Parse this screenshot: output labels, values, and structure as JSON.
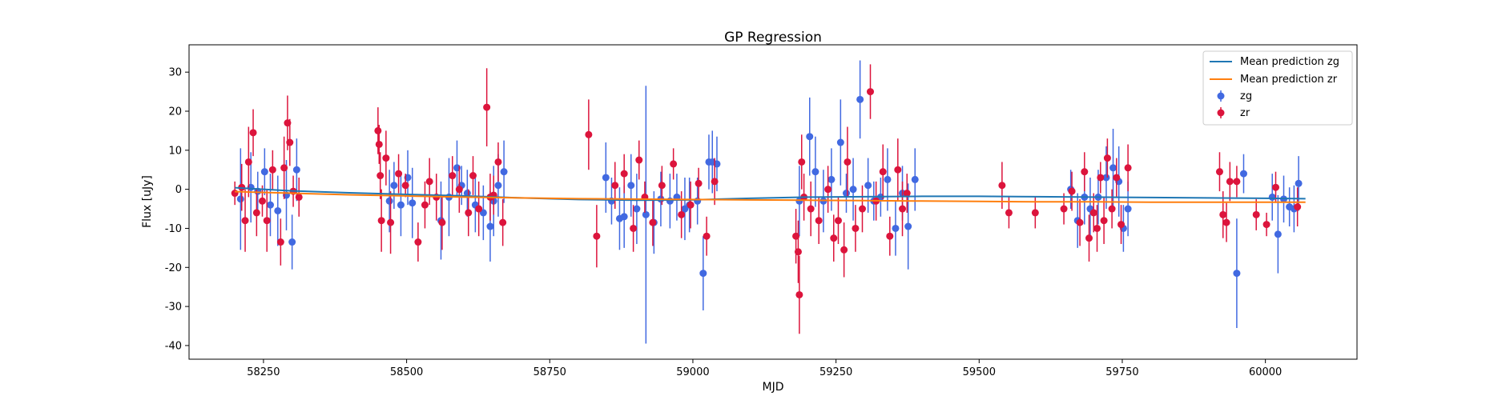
{
  "chart_data": {
    "type": "scatter",
    "title": "GP Regression",
    "xlabel": "MJD",
    "ylabel": "Flux [uJy]",
    "xlim": [
      58120,
      60160
    ],
    "ylim": [
      -43.5,
      37
    ],
    "xticks": [
      58250,
      58500,
      58750,
      59000,
      59250,
      59500,
      59750,
      60000
    ],
    "yticks": [
      -40,
      -30,
      -20,
      -10,
      0,
      10,
      20,
      30
    ],
    "grid": false,
    "legend_position": "top-right",
    "legend": [
      "Mean prediction zg",
      "Mean prediction zr",
      "zg",
      "zr"
    ],
    "colors": {
      "mean_zg": "#1f77b4",
      "mean_zr": "#ff7f0e",
      "zg": "#4169e1",
      "zr": "#dc143c"
    },
    "series": [
      {
        "name": "Mean prediction zg",
        "kind": "line",
        "x": [
          58200,
          58300,
          58400,
          58500,
          58600,
          58700,
          58800,
          58900,
          59000,
          59100,
          59200,
          59300,
          59400,
          59500,
          59600,
          59700,
          59800,
          59900,
          60000,
          60070
        ],
        "y": [
          0.4,
          -0.4,
          -0.9,
          -1.3,
          -1.7,
          -2.2,
          -2.6,
          -2.8,
          -2.7,
          -2.3,
          -2.0,
          -1.9,
          -1.8,
          -1.8,
          -1.9,
          -2.0,
          -2.1,
          -2.2,
          -2.3,
          -2.4
        ]
      },
      {
        "name": "Mean prediction zr",
        "kind": "line",
        "x": [
          58200,
          58300,
          58400,
          58500,
          58600,
          58700,
          58800,
          58900,
          59000,
          59100,
          59200,
          59300,
          59400,
          59500,
          59600,
          59700,
          59800,
          59900,
          60000,
          60070
        ],
        "y": [
          -0.6,
          -1.0,
          -1.4,
          -1.7,
          -2.0,
          -2.2,
          -2.4,
          -2.5,
          -2.6,
          -2.7,
          -2.8,
          -2.9,
          -3.0,
          -3.1,
          -3.2,
          -3.2,
          -3.3,
          -3.3,
          -3.3,
          -3.3
        ]
      },
      {
        "name": "zg",
        "kind": "errorbar",
        "x": [
          58210,
          58228,
          58240,
          58252,
          58262,
          58275,
          58290,
          58300,
          58308,
          58470,
          58478,
          58490,
          58502,
          58510,
          58560,
          58574,
          58588,
          58596,
          58606,
          58620,
          58634,
          58646,
          58652,
          58660,
          58670,
          58848,
          58858,
          58872,
          58880,
          58892,
          58902,
          58918,
          58932,
          58944,
          58960,
          58972,
          58986,
          58994,
          59008,
          59018,
          59028,
          59034,
          59042,
          59186,
          59204,
          59214,
          59228,
          59242,
          59258,
          59268,
          59280,
          59292,
          59306,
          59316,
          59328,
          59340,
          59354,
          59366,
          59376,
          59388,
          59660,
          59672,
          59684,
          59694,
          59708,
          59722,
          59734,
          59744,
          59752,
          59760,
          59950,
          59962,
          60012,
          60022,
          60032,
          60042,
          60050,
          60058
        ],
        "y": [
          -2.5,
          0.5,
          -0.5,
          4.5,
          -4.0,
          -5.5,
          -1.5,
          -13.5,
          5.0,
          -3.0,
          1.0,
          -4.0,
          3.0,
          -3.5,
          -8.0,
          -2.0,
          5.5,
          1.0,
          -1.0,
          -4.0,
          -6.0,
          -9.5,
          -3.0,
          1.0,
          4.5,
          3.0,
          -3.0,
          -7.5,
          -7.0,
          1.0,
          -5.0,
          -6.5,
          -8.5,
          -2.5,
          -3.0,
          -2.0,
          -5.0,
          -4.0,
          -3.0,
          -21.5,
          7.0,
          7.0,
          6.5,
          -3.0,
          13.5,
          4.5,
          -3.0,
          2.5,
          12.0,
          -1.0,
          0.0,
          23.0,
          1.0,
          -3.0,
          -2.0,
          2.5,
          -10.0,
          -1.0,
          -9.5,
          2.5,
          0.0,
          -8.0,
          -2.0,
          -5.0,
          -2.0,
          3.0,
          5.5,
          2.0,
          -10.0,
          -5.0,
          -21.5,
          4.0,
          -2.0,
          -11.5,
          -2.5,
          -4.5,
          -5.0,
          1.5
        ],
        "err": [
          13,
          9,
          5,
          6,
          8,
          9,
          9,
          7,
          8,
          8,
          6,
          8,
          7,
          9,
          10,
          10,
          7,
          5,
          6,
          7,
          7,
          9,
          9,
          8,
          8,
          9,
          6,
          8,
          8,
          8,
          9,
          33,
          8,
          7,
          7,
          6,
          8,
          7,
          6,
          9.5,
          7,
          8,
          7,
          9,
          10,
          9,
          8,
          8,
          11,
          5,
          8,
          10,
          7,
          5,
          5,
          8,
          7,
          7,
          11,
          8,
          5,
          7,
          7,
          8,
          7,
          8,
          10,
          9,
          6,
          7,
          14,
          5,
          6,
          10,
          6,
          5,
          6,
          7
        ]
      },
      {
        "name": "zr",
        "kind": "errorbar",
        "x": [
          58200,
          58212,
          58218,
          58224,
          58232,
          58238,
          58248,
          58256,
          58266,
          58280,
          58286,
          58292,
          58296,
          58302,
          58312,
          58450,
          58452,
          58454,
          58456,
          58464,
          58472,
          58486,
          58498,
          58520,
          58532,
          58540,
          58552,
          58562,
          58580,
          58592,
          58608,
          58616,
          58626,
          58640,
          58646,
          58652,
          58660,
          58668,
          58818,
          58832,
          58864,
          58880,
          58896,
          58906,
          58916,
          58930,
          58946,
          58966,
          58980,
          58996,
          59010,
          59024,
          59038,
          59180,
          59184,
          59186,
          59190,
          59194,
          59206,
          59220,
          59236,
          59246,
          59254,
          59264,
          59270,
          59284,
          59296,
          59310,
          59320,
          59332,
          59344,
          59358,
          59366,
          59374,
          59540,
          59552,
          59598,
          59648,
          59662,
          59676,
          59684,
          59692,
          59700,
          59706,
          59712,
          59718,
          59724,
          59732,
          59740,
          59748,
          59760,
          59920,
          59926,
          59932,
          59938,
          59950,
          59984,
          60002,
          60018,
          60056
        ],
        "y": [
          -1.0,
          0.5,
          -8.0,
          7.0,
          14.5,
          -6.0,
          -3.0,
          -8.0,
          5.0,
          -13.5,
          5.5,
          17.0,
          12.0,
          -0.5,
          -2.0,
          15.0,
          11.5,
          3.5,
          -8.0,
          8.0,
          -8.5,
          4.0,
          1.0,
          -13.5,
          -4.0,
          2.0,
          -2.0,
          -8.5,
          3.5,
          0.0,
          -6.0,
          3.5,
          -5.0,
          21.0,
          -2.0,
          -1.5,
          7.0,
          -8.5,
          14.0,
          -12.0,
          1.0,
          4.0,
          -10.0,
          7.5,
          -2.0,
          -8.5,
          1.0,
          6.5,
          -6.5,
          -4.0,
          1.5,
          -12.0,
          2.0,
          -12.0,
          -16.0,
          -27.0,
          7.0,
          -2.0,
          -5.0,
          -8.0,
          0.0,
          -12.5,
          -8.0,
          -15.5,
          7.0,
          -10.0,
          -5.0,
          25.0,
          -3.0,
          4.5,
          -12.0,
          5.0,
          -5.0,
          -1.0,
          1.0,
          -6.0,
          -6.0,
          -5.0,
          -0.5,
          -8.5,
          4.5,
          -12.5,
          -6.0,
          -10.0,
          3.0,
          -8.0,
          8.0,
          -5.0,
          3.0,
          -9.0,
          5.5,
          4.5,
          -6.5,
          -8.5,
          2.0,
          2.0,
          -6.5,
          -9.0,
          0.5,
          -4.5
        ],
        "err": [
          3,
          6,
          8,
          9,
          6,
          6,
          4,
          8,
          5,
          6,
          8,
          7,
          6,
          4,
          5,
          6,
          5,
          6,
          8,
          7,
          8,
          5,
          3,
          5,
          6,
          6,
          6,
          7,
          5,
          6,
          6,
          5,
          7,
          10,
          6,
          5,
          5,
          6,
          9,
          8,
          6,
          5,
          6,
          5,
          4,
          6,
          5,
          4,
          6,
          6,
          4,
          5,
          6,
          7,
          8,
          10,
          7,
          6,
          7,
          6,
          6,
          6,
          6,
          7,
          9,
          6,
          6,
          7,
          5,
          7,
          5,
          8,
          7,
          5,
          6,
          4,
          4,
          4,
          5,
          6,
          5,
          6,
          5,
          6,
          4,
          6,
          5,
          5,
          5,
          5,
          6,
          5,
          6,
          5,
          5,
          4,
          4,
          3,
          4,
          5
        ]
      }
    ]
  }
}
